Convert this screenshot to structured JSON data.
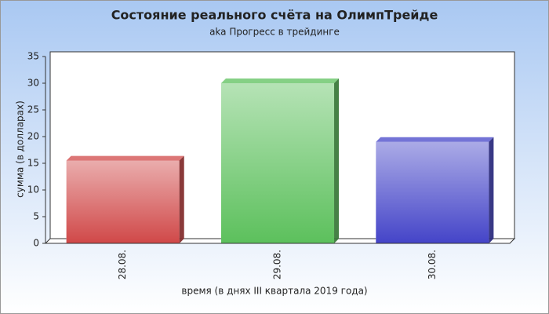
{
  "chart_data": {
    "type": "bar",
    "title": "Состояние реального счёта на ОлимпТрейде",
    "subtitle": "aka Прогресс в трейдинге",
    "x_label": "время (в днях III квартала 2019 года)",
    "y_label": "сумма (в долларах)",
    "categories": [
      "28.08.",
      "29.08.",
      "30.08."
    ],
    "values": [
      15.5,
      30,
      19
    ],
    "colors": [
      "#d04848",
      "#5cc05c",
      "#4444c8"
    ],
    "ylim": [
      0,
      35
    ],
    "yticks": [
      0,
      5,
      10,
      15,
      20,
      25,
      30,
      35
    ]
  }
}
